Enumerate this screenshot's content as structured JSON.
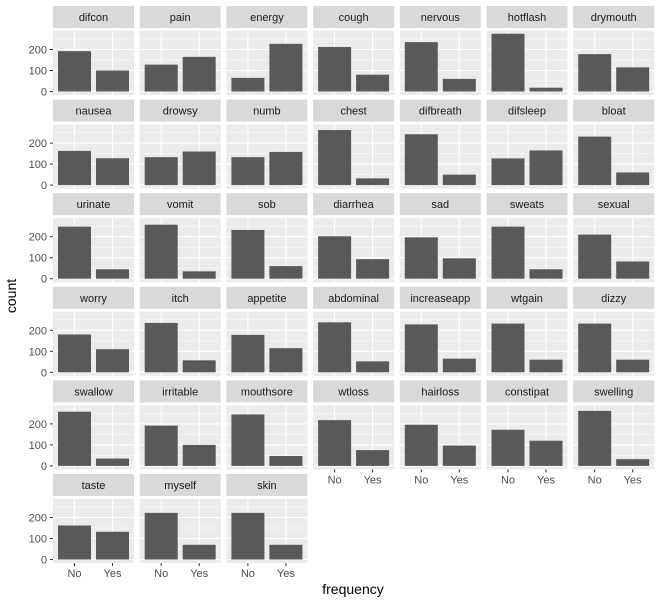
{
  "chart_data": {
    "type": "bar",
    "xlabel": "frequency",
    "ylabel": "count",
    "categories": [
      "No",
      "Yes"
    ],
    "ylim": [
      0,
      300
    ],
    "yticks": [
      0,
      100,
      200
    ],
    "grid": true,
    "colors": {
      "bar": "#595959",
      "panel": "#ebebeb",
      "strip": "#d9d9d9",
      "grid": "#ffffff"
    },
    "facets": [
      {
        "name": "difcon",
        "values": [
          192,
          100
        ]
      },
      {
        "name": "pain",
        "values": [
          128,
          165
        ]
      },
      {
        "name": "energy",
        "values": [
          65,
          227
        ]
      },
      {
        "name": "cough",
        "values": [
          212,
          80
        ]
      },
      {
        "name": "nervous",
        "values": [
          235,
          60
        ]
      },
      {
        "name": "hotflash",
        "values": [
          275,
          18
        ]
      },
      {
        "name": "drymouth",
        "values": [
          178,
          115
        ]
      },
      {
        "name": "nausea",
        "values": [
          163,
          128
        ]
      },
      {
        "name": "drowsy",
        "values": [
          133,
          160
        ]
      },
      {
        "name": "numb",
        "values": [
          133,
          158
        ]
      },
      {
        "name": "chest",
        "values": [
          262,
          32
        ]
      },
      {
        "name": "difbreath",
        "values": [
          242,
          50
        ]
      },
      {
        "name": "difsleep",
        "values": [
          127,
          165
        ]
      },
      {
        "name": "bloat",
        "values": [
          231,
          60
        ]
      },
      {
        "name": "urinate",
        "values": [
          248,
          45
        ]
      },
      {
        "name": "vomit",
        "values": [
          257,
          35
        ]
      },
      {
        "name": "sob",
        "values": [
          232,
          60
        ]
      },
      {
        "name": "diarrhea",
        "values": [
          202,
          93
        ]
      },
      {
        "name": "sad",
        "values": [
          197,
          97
        ]
      },
      {
        "name": "sweats",
        "values": [
          248,
          45
        ]
      },
      {
        "name": "sexual",
        "values": [
          210,
          82
        ]
      },
      {
        "name": "worry",
        "values": [
          180,
          110
        ]
      },
      {
        "name": "itch",
        "values": [
          235,
          57
        ]
      },
      {
        "name": "appetite",
        "values": [
          178,
          115
        ]
      },
      {
        "name": "abdominal",
        "values": [
          238,
          52
        ]
      },
      {
        "name": "increaseapp",
        "values": [
          228,
          65
        ]
      },
      {
        "name": "wtgain",
        "values": [
          232,
          60
        ]
      },
      {
        "name": "dizzy",
        "values": [
          232,
          60
        ]
      },
      {
        "name": "swallow",
        "values": [
          258,
          35
        ]
      },
      {
        "name": "irritable",
        "values": [
          192,
          100
        ]
      },
      {
        "name": "mouthsore",
        "values": [
          245,
          47
        ]
      },
      {
        "name": "wtloss",
        "values": [
          218,
          75
        ]
      },
      {
        "name": "hairloss",
        "values": [
          196,
          97
        ]
      },
      {
        "name": "constipat",
        "values": [
          172,
          120
        ]
      },
      {
        "name": "swelling",
        "values": [
          262,
          32
        ]
      },
      {
        "name": "taste",
        "values": [
          162,
          132
        ]
      },
      {
        "name": "myself",
        "values": [
          222,
          70
        ]
      },
      {
        "name": "skin",
        "values": [
          222,
          70
        ]
      }
    ]
  }
}
